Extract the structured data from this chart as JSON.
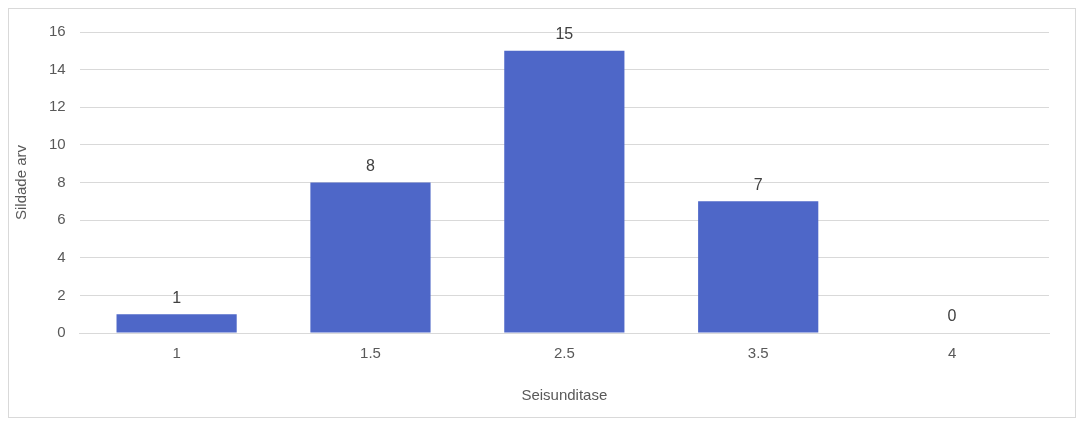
{
  "chart_data": {
    "type": "bar",
    "xlabel": "Seisunditase",
    "ylabel": "Sildade arv",
    "categories": [
      "1",
      "1.5",
      "2.5",
      "3.5",
      "4"
    ],
    "values": [
      1,
      8,
      15,
      7,
      0
    ],
    "color": "#4e67c8",
    "ylim": [
      0,
      16
    ],
    "yticks": [
      0,
      2,
      4,
      6,
      8,
      10,
      12,
      14,
      16
    ],
    "grid": "y",
    "data_labels": true
  }
}
